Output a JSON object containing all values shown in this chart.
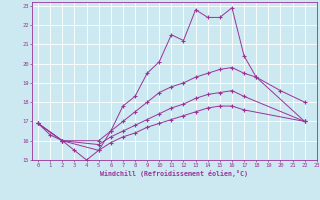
{
  "xlabel": "Windchill (Refroidissement éolien,°C)",
  "bg_color": "#cce8f0",
  "line_color": "#993399",
  "grid_color": "#ffffff",
  "xlim": [
    -0.5,
    23
  ],
  "ylim": [
    15,
    23.2
  ],
  "xticks": [
    0,
    1,
    2,
    3,
    4,
    5,
    6,
    7,
    8,
    9,
    10,
    11,
    12,
    13,
    14,
    15,
    16,
    17,
    18,
    19,
    20,
    21,
    22,
    23
  ],
  "yticks": [
    15,
    16,
    17,
    18,
    19,
    20,
    21,
    22,
    23
  ],
  "series": [
    {
      "x": [
        0,
        1,
        2,
        3,
        4,
        5,
        6,
        7,
        8,
        9,
        10,
        11,
        12,
        13,
        14,
        15,
        16,
        17,
        18,
        20,
        22
      ],
      "y": [
        16.9,
        16.3,
        16.0,
        15.5,
        15.0,
        15.5,
        16.5,
        17.8,
        18.3,
        19.5,
        20.1,
        21.5,
        21.2,
        22.8,
        22.4,
        22.4,
        22.9,
        20.4,
        19.3,
        18.6,
        18.0
      ]
    },
    {
      "x": [
        0,
        2,
        5,
        6,
        7,
        8,
        9,
        10,
        11,
        12,
        13,
        14,
        15,
        16,
        17,
        18,
        22
      ],
      "y": [
        16.9,
        16.0,
        16.0,
        16.5,
        17.0,
        17.5,
        18.0,
        18.5,
        18.8,
        19.0,
        19.3,
        19.5,
        19.7,
        19.8,
        19.5,
        19.3,
        17.0
      ]
    },
    {
      "x": [
        0,
        2,
        5,
        6,
        7,
        8,
        9,
        10,
        11,
        12,
        13,
        14,
        15,
        16,
        17,
        22
      ],
      "y": [
        16.9,
        16.0,
        15.8,
        16.2,
        16.5,
        16.8,
        17.1,
        17.4,
        17.7,
        17.9,
        18.2,
        18.4,
        18.5,
        18.6,
        18.3,
        17.0
      ]
    },
    {
      "x": [
        0,
        2,
        5,
        6,
        7,
        8,
        9,
        10,
        11,
        12,
        13,
        14,
        15,
        16,
        17,
        22
      ],
      "y": [
        16.9,
        16.0,
        15.5,
        15.9,
        16.2,
        16.4,
        16.7,
        16.9,
        17.1,
        17.3,
        17.5,
        17.7,
        17.8,
        17.8,
        17.6,
        17.0
      ]
    }
  ]
}
